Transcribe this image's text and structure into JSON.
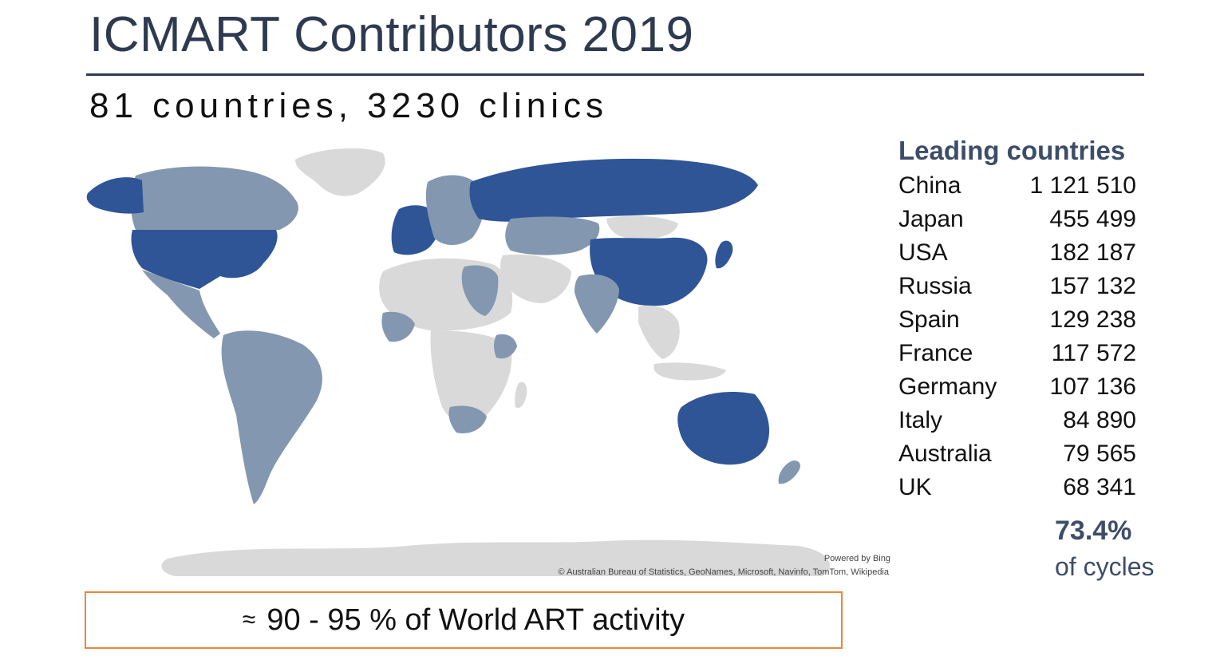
{
  "slide": {
    "title": "ICMART Contributors 2019",
    "subtitle": "81 countries, 3230 clinics"
  },
  "map": {
    "credit_powered": "Powered by Bing",
    "credit_sources": "© Australian Bureau of Statistics, GeoNames, Microsoft, Navinfo, TomTom, Wikipedia",
    "colors": {
      "leading": "#2f5597",
      "contributor": "#8497b0",
      "non_contributor": "#d9d9d9"
    }
  },
  "leading": {
    "heading": "Leading countries",
    "rows": [
      {
        "country": "China",
        "value": "1 121 510"
      },
      {
        "country": "Japan",
        "value": "455 499"
      },
      {
        "country": "USA",
        "value": "182 187"
      },
      {
        "country": "Russia",
        "value": "157 132"
      },
      {
        "country": "Spain",
        "value": "129 238"
      },
      {
        "country": "France",
        "value": "117 572"
      },
      {
        "country": "Germany",
        "value": "107 136"
      },
      {
        "country": "Italy",
        "value": "84 890"
      },
      {
        "country": "Australia",
        "value": "79 565"
      },
      {
        "country": "UK",
        "value": "68 341"
      }
    ],
    "summary_pct": "73.4%",
    "summary_label": "of cycles"
  },
  "callout": {
    "approx_symbol": "≈",
    "text": "90 - 95 % of World ART activity"
  }
}
